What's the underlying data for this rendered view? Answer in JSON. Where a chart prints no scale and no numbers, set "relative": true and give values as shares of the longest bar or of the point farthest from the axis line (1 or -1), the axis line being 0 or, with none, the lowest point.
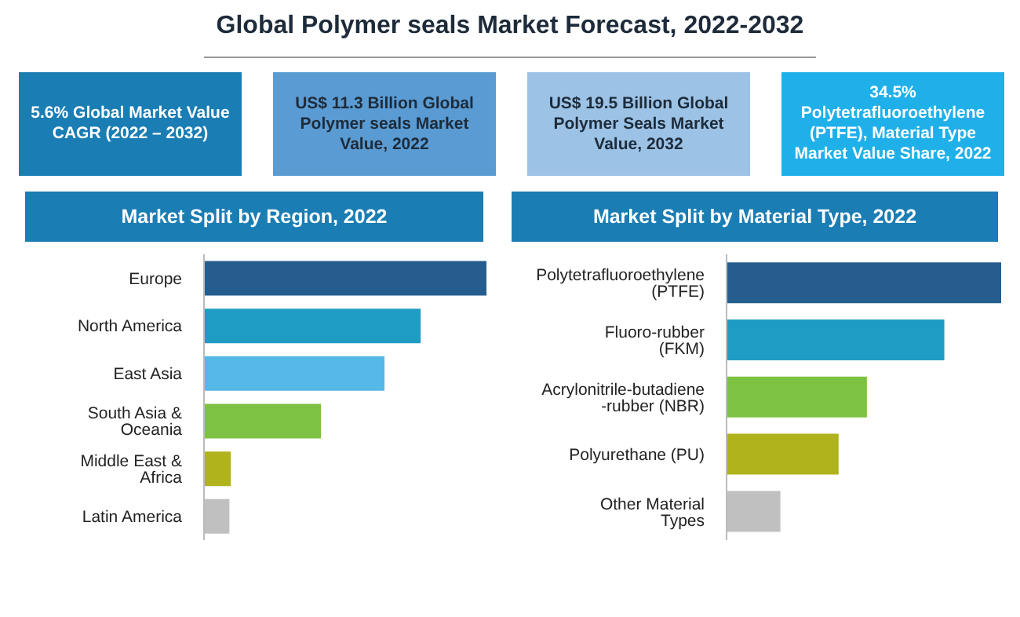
{
  "chart_data": [
    {
      "type": "other",
      "title": "Global Polymer seals Market Forecast, 2022-2032",
      "annotations": [
        "5.6% Global Market Value CAGR (2022 – 2032)",
        "US$ 11.3 Billion Global Polymer seals Market Value, 2022",
        "US$ 19.5 Billion Global Polymer Seals Market Value, 2032",
        "34.5% Polytetrafluoroethylene (PTFE), Material Type Market Value Share, 2022"
      ]
    },
    {
      "type": "bar",
      "orientation": "horizontal",
      "relative": true,
      "title": "Market Split by Region, 2022",
      "categories": [
        "Europe",
        "North America",
        "East Asia",
        "South Asia & Oceania",
        "Middle East & Africa",
        "Latin America"
      ],
      "values": [
        1,
        0.767,
        0.639,
        0.414,
        0.095,
        0.09
      ],
      "colors": [
        "#265d8f",
        "#1f9cc4",
        "#56b8e6",
        "#7dc242",
        "#b0b31c",
        "#c0c0c0"
      ]
    },
    {
      "type": "bar",
      "orientation": "horizontal",
      "relative": true,
      "title": "Market Split by Material Type, 2022",
      "categories": [
        "Polytetrafluoroethylene (PTFE)",
        "Fluoro-rubber (FKM)",
        "Acrylonitrile-butadiene -rubber (NBR)",
        "Polyurethane (PU)",
        "Other Material Types"
      ],
      "values": [
        1,
        0.793,
        0.511,
        0.408,
        0.196
      ],
      "colors": [
        "#265d8f",
        "#1f9cc4",
        "#7dc242",
        "#b0b31c",
        "#c0c0c0"
      ]
    }
  ]
}
